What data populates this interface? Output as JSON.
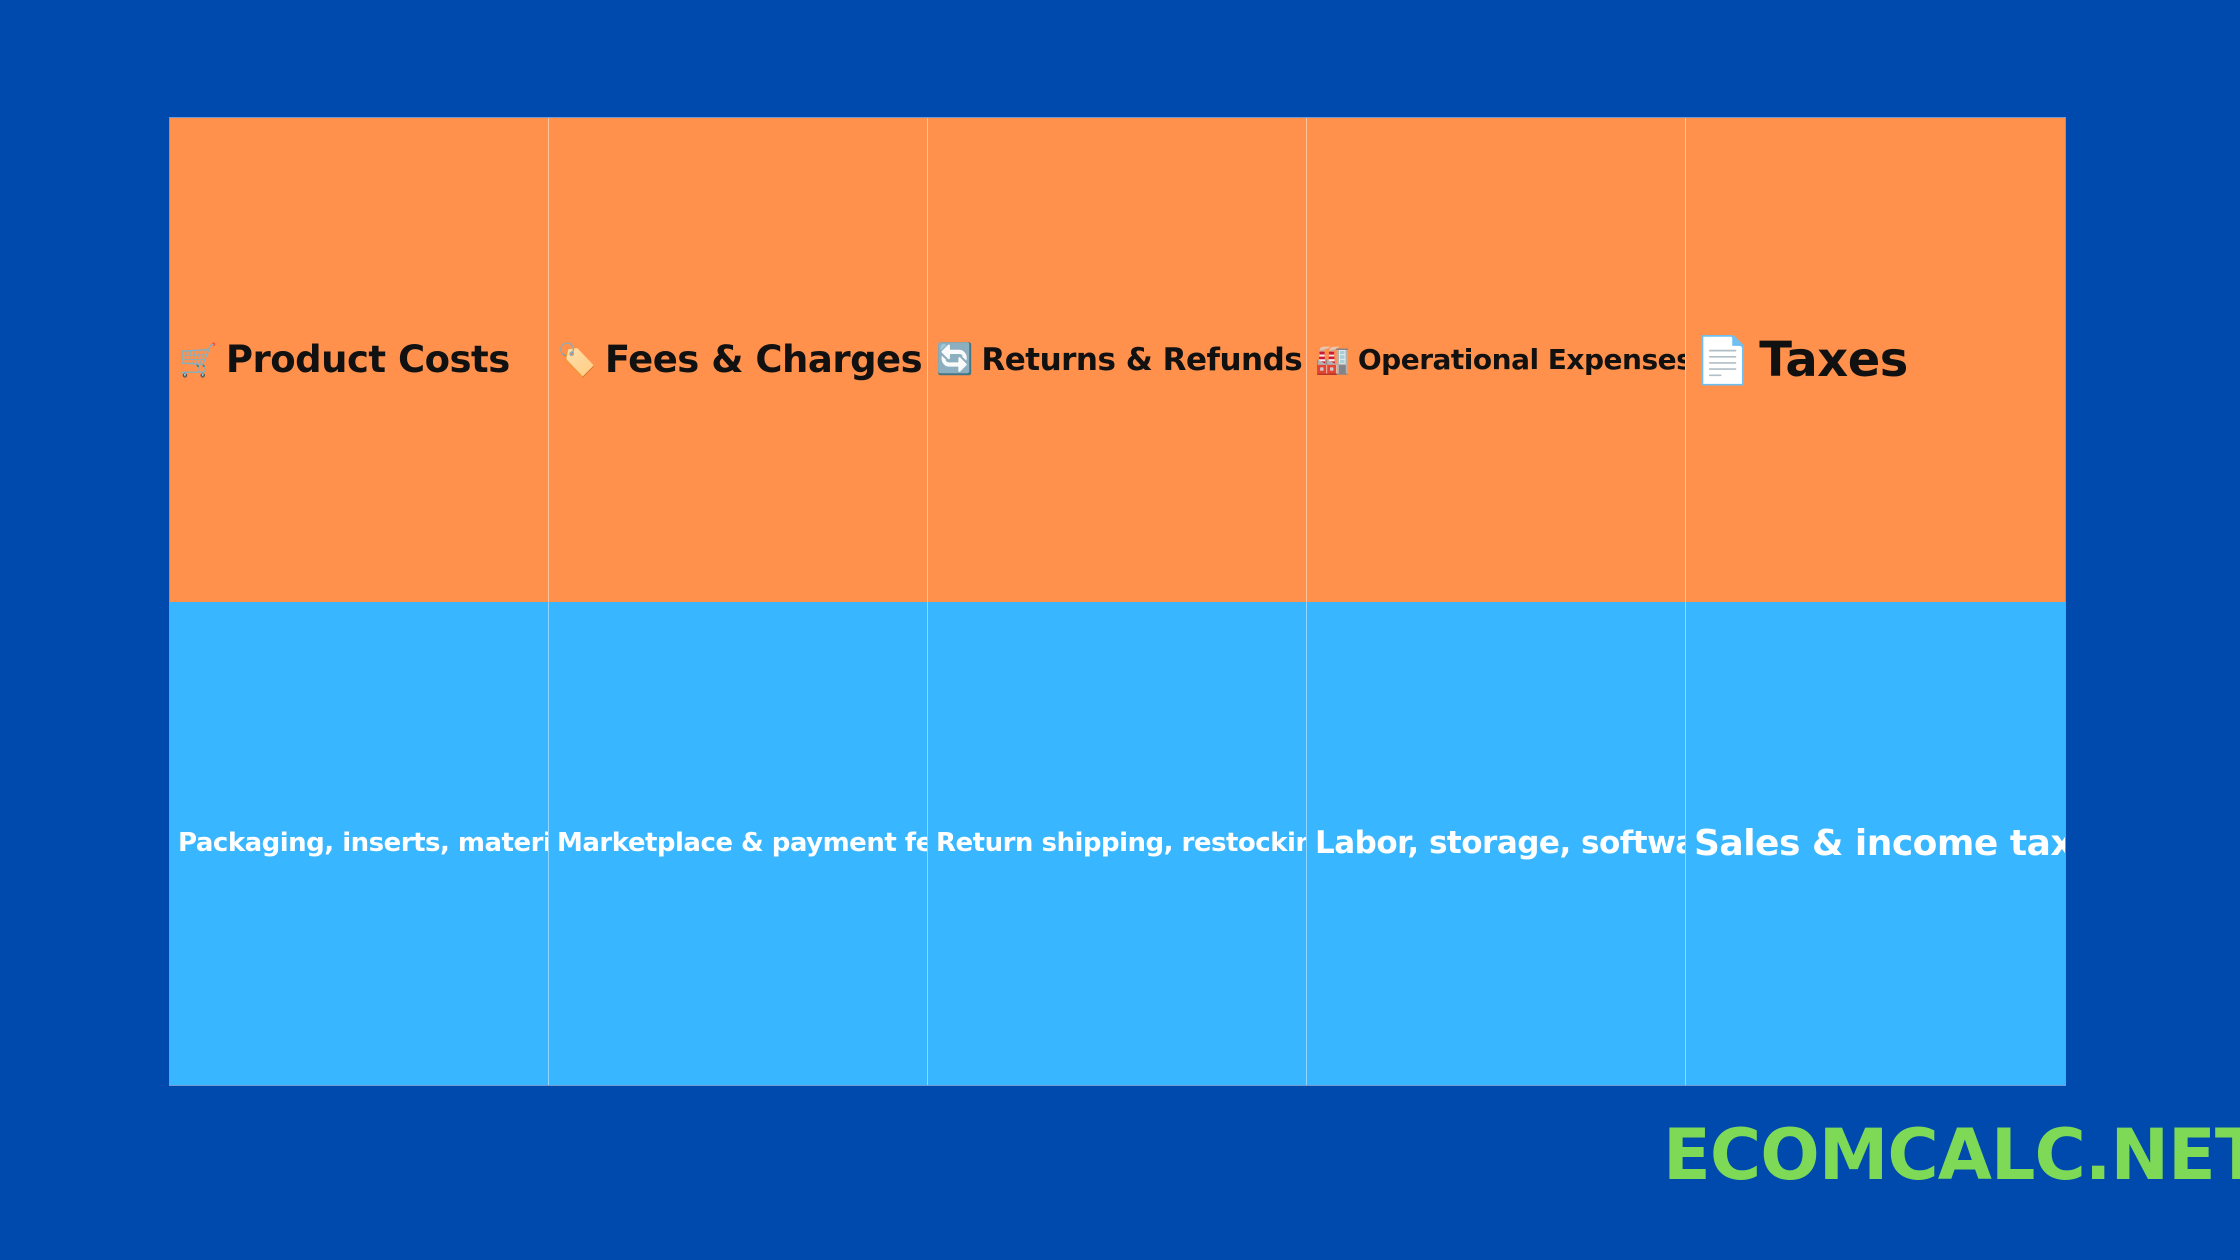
{
  "categories": [
    {
      "icon": "shopping-cart-icon",
      "glyph": "🛒",
      "title": "Product Costs",
      "description": "Packaging, inserts, materials"
    },
    {
      "icon": "price-tag-icon",
      "glyph": "🏷️",
      "title": "Fees & Charges",
      "description": "Marketplace & payment fees"
    },
    {
      "icon": "refresh-arrows-icon",
      "glyph": "🔄",
      "title": "Returns & Refunds",
      "description": "Return shipping, restocking"
    },
    {
      "icon": "factory-icon",
      "glyph": "🏭",
      "title": "Operational Expenses",
      "description": "Labor, storage, software"
    },
    {
      "icon": "document-icon",
      "glyph": "📄",
      "title": "Taxes",
      "description": "Sales & income taxes"
    }
  ],
  "brand": {
    "text": "ECOMCALC.NET"
  },
  "colors": {
    "background": "#004aad",
    "header_row": "#ff914d",
    "description_row": "#38b6ff",
    "brand": "#7ed957"
  }
}
